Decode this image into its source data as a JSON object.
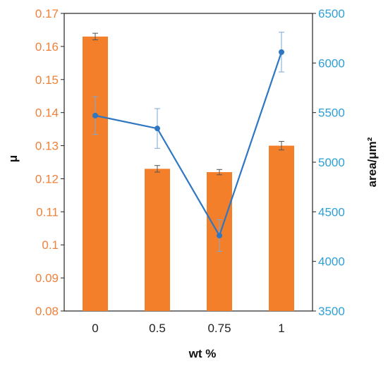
{
  "chart_data": {
    "type": "bar+line",
    "categories": [
      "0",
      "0.5",
      "0.75",
      "1"
    ],
    "xlabel": "wt %",
    "ylabel_left": "μ",
    "ylabel_right": "area/μm²",
    "ylim_left": [
      0.08,
      0.17
    ],
    "ylim_right": [
      3500,
      6500
    ],
    "yticks_left": [
      "0.08",
      "0.09",
      "0.1",
      "0.11",
      "0.12",
      "0.13",
      "0.14",
      "0.15",
      "0.16",
      "0.17"
    ],
    "yticks_right": [
      "3500",
      "4000",
      "4500",
      "5000",
      "5500",
      "6000",
      "6500"
    ],
    "grid": false,
    "legend": "none",
    "series": [
      {
        "type": "bar",
        "axis": "left",
        "color": "#f47f2a",
        "values": [
          0.163,
          0.123,
          0.122,
          0.13
        ],
        "error": [
          0.001,
          0.001,
          0.0008,
          0.0013
        ]
      },
      {
        "type": "line",
        "axis": "right",
        "color": "#2f77c2",
        "values": [
          5470,
          5340,
          4260,
          6110
        ],
        "error": [
          190,
          200,
          160,
          200
        ]
      }
    ]
  }
}
